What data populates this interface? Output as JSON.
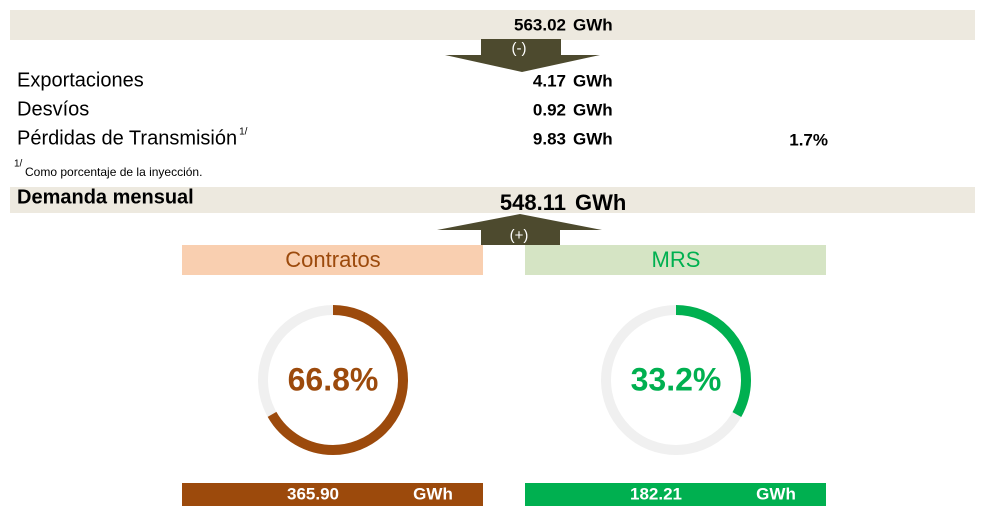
{
  "injection": {
    "value": "563.02",
    "unit": "GWh"
  },
  "arrow_minus": "(-)",
  "rows": [
    {
      "label": "Exportaciones",
      "value": "4.17",
      "unit": "GWh"
    },
    {
      "label": "Desvíos",
      "value": "0.92",
      "unit": "GWh"
    },
    {
      "label": "Pérdidas de Transmisión",
      "superscript": "1/",
      "value": "9.83",
      "unit": "GWh",
      "percent": "1.7%"
    }
  ],
  "footnote": {
    "marker": "1/",
    "text": "Como porcentaje de la inyección."
  },
  "demand": {
    "label": "Demanda mensual",
    "value": "548.11",
    "unit": "GWh"
  },
  "arrow_plus": "(+)",
  "gauges": [
    {
      "title": "Contratos",
      "percent": 66.8,
      "percent_label": "66.8%",
      "value": "365.90",
      "unit": "GWh",
      "color": "#9c4a0c",
      "header_color": "#f9cfb0"
    },
    {
      "title": "MRS",
      "percent": 33.2,
      "percent_label": "33.2%",
      "value": "182.21",
      "unit": "GWh",
      "color": "#00b050",
      "header_color": "#d5e4c4"
    }
  ]
}
